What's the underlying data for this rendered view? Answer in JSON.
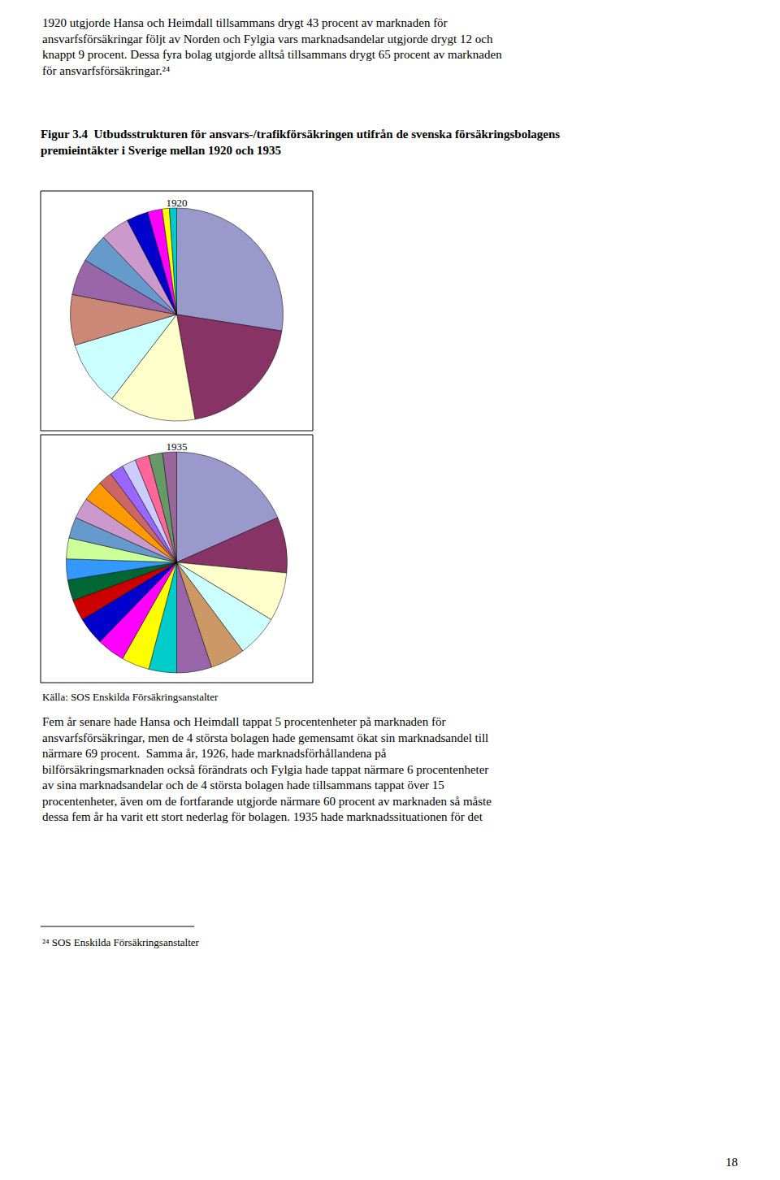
{
  "title": "Figur 3.4  Utbudsstrukturen för ansvars-/trafikförsäkringen utifrån de svenska försäkringsbolagens\npremieintäkter i Sverige mellan 1920 och 1935",
  "annotations": [
    "1920 utgjorde Hansa och Heimdall tillsammans drygt 43 procent av marknaden för\nansvarfsförsäkringar följt av Norden och Fylgia vars marknadsandelar utgjorde drygt 12 och\nknappt 9 procent. Dessa fyra bolag utgjorde alltså tillsammans drygt 65 procent av marknaden\nför ansvarfsförsäkringar.²⁴",
    "Källa: SOS Enskilda Försäkringsanstalter",
    "Fem år senare hade Hansa och Heimdall tappat 5 procentenheter på marknaden för\nansvarfsförsäkringar, men de 4 största bolagen hade gemensamt ökat sin marknadsandel till\nnärmare 69 procent.  Samma år, 1926, hade marknadsförhållandena på\nbilförsäkringsmarknaden också förändrats och Fylgia hade tappat närmare 6 procentenheter\nav sina marknadsandelar och de 4 största bolagen hade tillsammans tappat över 15\nprocentenheter, även om de fortfarande utgjorde närmare 60 procent av marknaden så måste\ndessa fem år ha varit ett stort nederlag för bolagen. 1935 hade marknadssituationen för det",
    "²⁴ SOS Enskilda Försäkringsanstalter",
    "18"
  ],
  "chart_data": [
    {
      "type": "pie",
      "title": "1920",
      "values": [
        25,
        18,
        12,
        9,
        7,
        5,
        4,
        4,
        3,
        2,
        1,
        1
      ],
      "colors": [
        "#9999cc",
        "#883366",
        "#ffffcc",
        "#ccffff",
        "#cc8877",
        "#9966aa",
        "#6699cc",
        "#cc99cc",
        "#0000cc",
        "#ff00ff",
        "#ffff00",
        "#00cccc"
      ]
    },
    {
      "type": "pie",
      "title": "1935",
      "values": [
        18,
        8,
        7,
        6,
        5,
        5,
        4,
        4,
        4,
        4,
        3,
        3,
        3,
        3,
        3,
        3,
        3,
        2,
        2,
        2,
        2,
        2,
        2
      ],
      "colors": [
        "#9999cc",
        "#883366",
        "#ffffcc",
        "#ccffff",
        "#cc9966",
        "#9966aa",
        "#00cccc",
        "#ffff00",
        "#ff00ff",
        "#0000cc",
        "#cc0000",
        "#006633",
        "#3399ff",
        "#ccff99",
        "#6699cc",
        "#cc99cc",
        "#ff9900",
        "#cc6666",
        "#9966ff",
        "#ccccff",
        "#ff6699",
        "#669966",
        "#996699"
      ]
    }
  ]
}
